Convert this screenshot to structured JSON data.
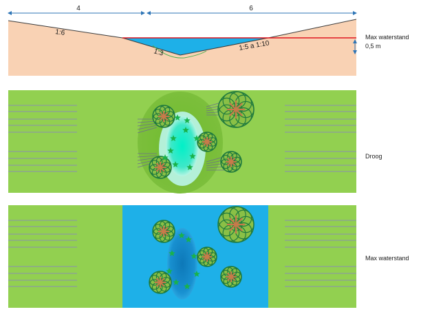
{
  "dimensions": {
    "left_width": "4",
    "right_width": "6"
  },
  "cross_section": {
    "slope_left": "1:6",
    "slope_inner": "1:3",
    "slope_right": "1:5 a 1:10",
    "max_level_label": "Max waterstand",
    "depth_label": "0,5 m"
  },
  "panels": {
    "dry_label": "Droog",
    "wet_label": "Max waterstand"
  },
  "colors": {
    "soil": "#f9d2b4",
    "water": "#1eb0e8",
    "grass": "#92d050",
    "grass_dark": "#7cbf3c",
    "water_line": "#e0141e",
    "dimension_arrow": "#2e75b6",
    "tree_ring": "#1f7a3e",
    "tree_core": "#c77a4a",
    "reed_star": "#19b24a",
    "pond_dry": "#3ee8c8"
  }
}
